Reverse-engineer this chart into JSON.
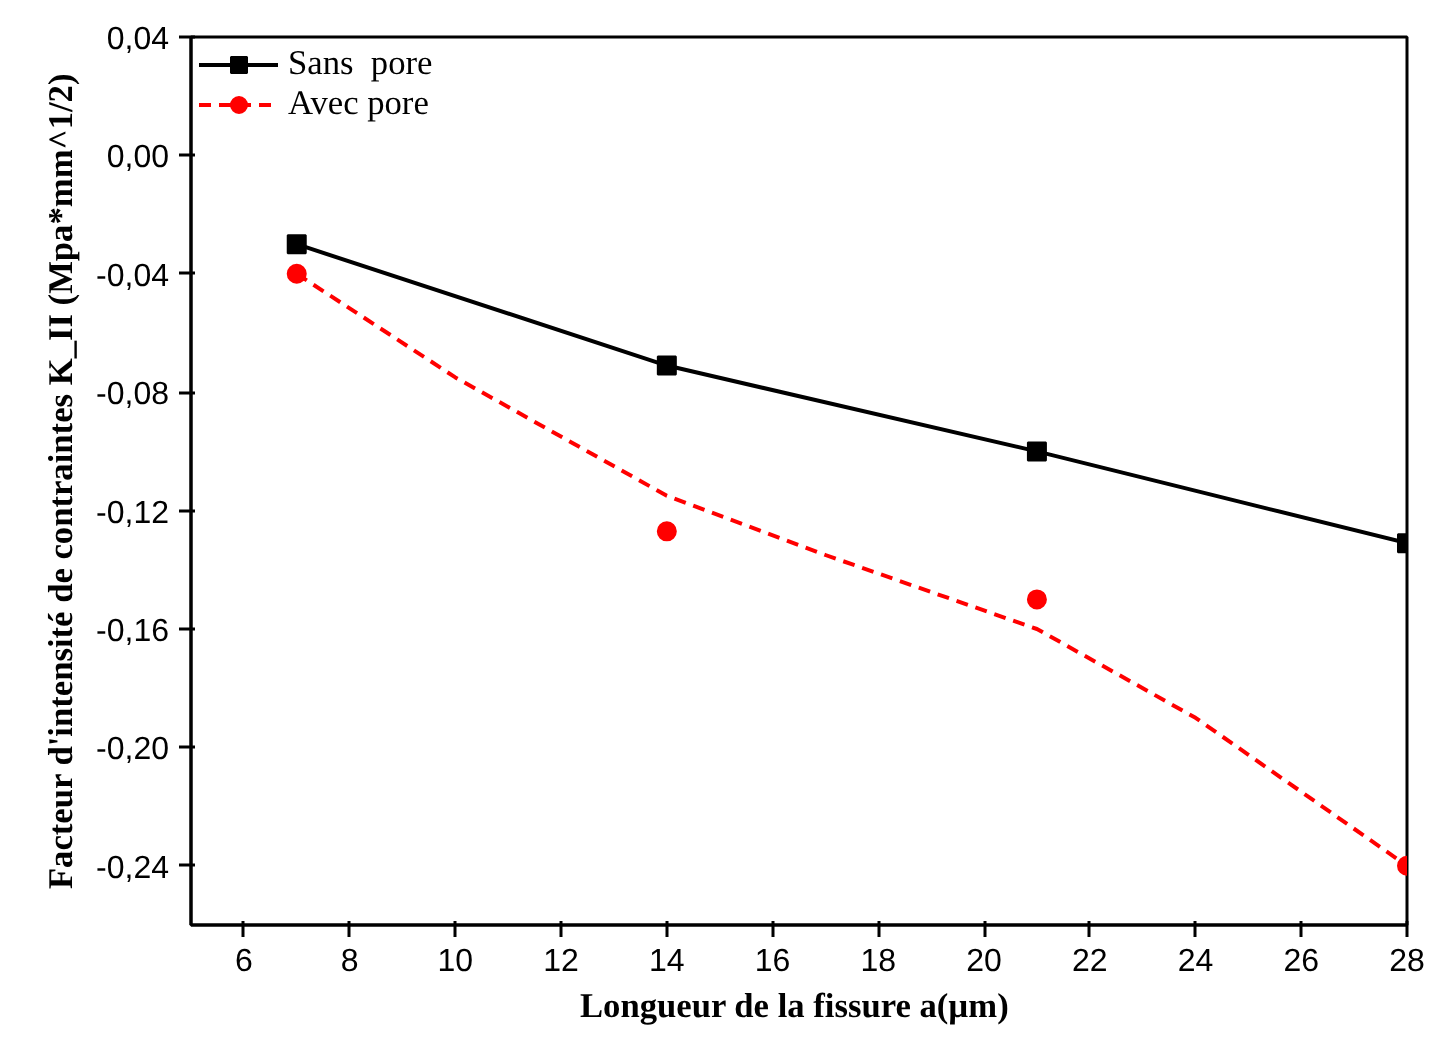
{
  "chart_data": {
    "type": "line",
    "xlabel": "Longueur de la fissure  a(µm)",
    "ylabel": "Facteur d'intensité de contraintes K_II (Mpa*mm^1/2)",
    "xlim": [
      5,
      28
    ],
    "xticks": [
      6,
      8,
      10,
      12,
      14,
      16,
      18,
      20,
      22,
      24,
      26,
      28
    ],
    "ylim": [
      -0.26,
      0.04
    ],
    "yticks": [
      {
        "value": 0.04,
        "label": "0,04"
      },
      {
        "value": 0.0,
        "label": "0,00"
      },
      {
        "value": -0.04,
        "label": "-0,04"
      },
      {
        "value": -0.08,
        "label": "-0,08"
      },
      {
        "value": -0.12,
        "label": "-0,12"
      },
      {
        "value": -0.16,
        "label": "-0,16"
      },
      {
        "value": -0.2,
        "label": "-0,20"
      },
      {
        "value": -0.24,
        "label": "-0,24"
      }
    ],
    "grid": false,
    "legend": "top left",
    "series": [
      {
        "name": "Sans  pore",
        "color": "#000000",
        "marker": "square",
        "line_style": "solid",
        "x": [
          7,
          14,
          21,
          28
        ],
        "values": [
          -0.03,
          -0.071,
          -0.1,
          -0.131
        ]
      },
      {
        "name": "Avec pore",
        "type": "scatter",
        "color": "#ff0000",
        "marker": "circle",
        "x": [
          7,
          14,
          21,
          28
        ],
        "values": [
          -0.04,
          -0.127,
          -0.15,
          -0.24
        ]
      },
      {
        "type": "line",
        "color": "#ff0000",
        "marker": "none",
        "line_style": "dashed",
        "x": [
          7,
          10,
          14,
          17,
          21,
          24,
          28
        ],
        "values": [
          -0.04,
          -0.075,
          -0.115,
          -0.135,
          -0.16,
          -0.19,
          -0.24
        ]
      }
    ]
  }
}
